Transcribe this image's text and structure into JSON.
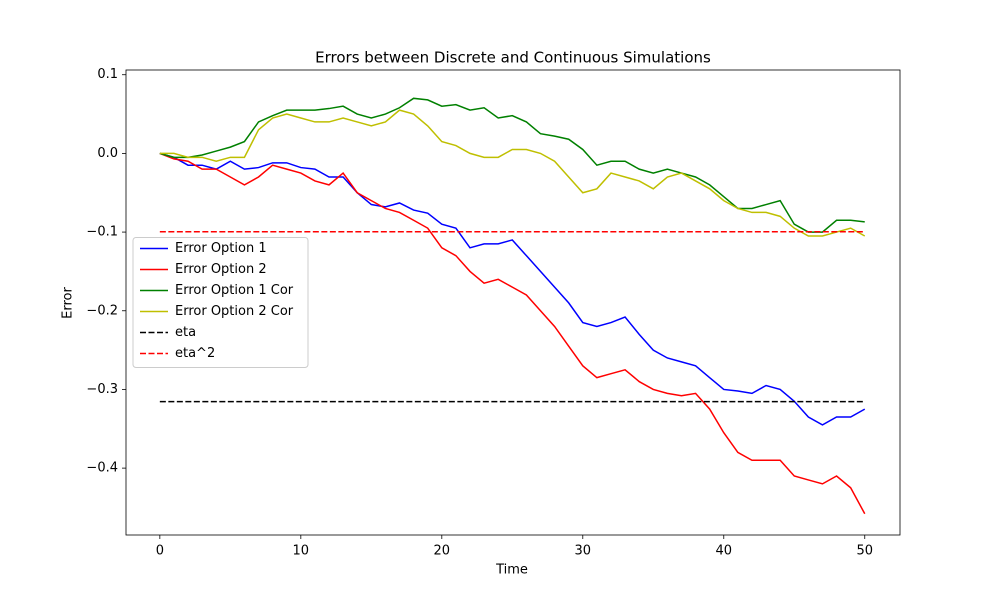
{
  "chart_data": {
    "type": "line",
    "title": "Errors between Discrete and Continuous Simulations",
    "xlabel": "Time",
    "ylabel": "Error",
    "x": [
      0,
      1,
      2,
      3,
      4,
      5,
      6,
      7,
      8,
      9,
      10,
      11,
      12,
      13,
      14,
      15,
      16,
      17,
      18,
      19,
      20,
      21,
      22,
      23,
      24,
      25,
      26,
      27,
      28,
      29,
      30,
      31,
      32,
      33,
      34,
      35,
      36,
      37,
      38,
      39,
      40,
      41,
      42,
      43,
      44,
      45,
      46,
      47,
      48,
      49,
      50
    ],
    "xlim": [
      -2.4,
      52.5
    ],
    "xticks": [
      0,
      10,
      20,
      30,
      40,
      50
    ],
    "ylim": [
      -0.485,
      0.106
    ],
    "yticks": [
      0.1,
      {
        "value": 0,
        "label": "0.0"
      },
      {
        "value": -0.1,
        "label": "−0.1"
      },
      {
        "value": -0.2,
        "label": "−0.2"
      },
      {
        "value": -0.3,
        "label": "−0.3"
      },
      {
        "value": -0.4,
        "label": "−0.4"
      }
    ],
    "legend": "center left",
    "series": [
      {
        "name": "Error Option 1",
        "color": "#0000ff",
        "dashed": false,
        "values": [
          0,
          -0.005,
          -0.015,
          -0.015,
          -0.02,
          -0.01,
          -0.02,
          -0.018,
          -0.012,
          -0.012,
          -0.018,
          -0.02,
          -0.03,
          -0.03,
          -0.05,
          -0.065,
          -0.068,
          -0.063,
          -0.072,
          -0.076,
          -0.09,
          -0.095,
          -0.12,
          -0.115,
          -0.115,
          -0.11,
          -0.13,
          -0.15,
          -0.17,
          -0.19,
          -0.215,
          -0.22,
          -0.215,
          -0.208,
          -0.23,
          -0.25,
          -0.26,
          -0.265,
          -0.27,
          -0.285,
          -0.3,
          -0.302,
          -0.305,
          -0.295,
          -0.3,
          -0.315,
          -0.335,
          -0.345,
          -0.335,
          -0.335,
          -0.325
        ]
      },
      {
        "name": "Error Option 2",
        "color": "#ff0000",
        "dashed": false,
        "values": [
          0,
          -0.007,
          -0.01,
          -0.02,
          -0.02,
          -0.03,
          -0.04,
          -0.03,
          -0.015,
          -0.02,
          -0.025,
          -0.035,
          -0.04,
          -0.025,
          -0.05,
          -0.06,
          -0.07,
          -0.075,
          -0.085,
          -0.095,
          -0.12,
          -0.13,
          -0.15,
          -0.165,
          -0.16,
          -0.17,
          -0.18,
          -0.2,
          -0.22,
          -0.245,
          -0.27,
          -0.285,
          -0.28,
          -0.275,
          -0.29,
          -0.3,
          -0.305,
          -0.308,
          -0.305,
          -0.325,
          -0.355,
          -0.38,
          -0.39,
          -0.39,
          -0.39,
          -0.41,
          -0.415,
          -0.42,
          -0.41,
          -0.425,
          -0.458
        ]
      },
      {
        "name": "Error Option 1 Cor",
        "color": "#008000",
        "dashed": false,
        "values": [
          0,
          -0.005,
          -0.005,
          -0.002,
          0.003,
          0.008,
          0.015,
          0.04,
          0.048,
          0.055,
          0.055,
          0.055,
          0.057,
          0.06,
          0.05,
          0.045,
          0.05,
          0.058,
          0.07,
          0.068,
          0.06,
          0.062,
          0.055,
          0.058,
          0.045,
          0.048,
          0.04,
          0.025,
          0.022,
          0.018,
          0.005,
          -0.015,
          -0.01,
          -0.01,
          -0.02,
          -0.025,
          -0.02,
          -0.025,
          -0.03,
          -0.04,
          -0.055,
          -0.07,
          -0.07,
          -0.065,
          -0.06,
          -0.09,
          -0.1,
          -0.1,
          -0.085,
          -0.085,
          -0.087
        ]
      },
      {
        "name": "Error Option 2 Cor",
        "color": "#bfbf00",
        "dashed": false,
        "values": [
          0,
          0,
          -0.005,
          -0.005,
          -0.01,
          -0.005,
          -0.005,
          0.03,
          0.045,
          0.05,
          0.045,
          0.04,
          0.04,
          0.045,
          0.04,
          0.035,
          0.04,
          0.055,
          0.05,
          0.035,
          0.015,
          0.01,
          0,
          -0.005,
          -0.005,
          0.005,
          0.005,
          0,
          -0.01,
          -0.03,
          -0.05,
          -0.045,
          -0.025,
          -0.03,
          -0.035,
          -0.045,
          -0.03,
          -0.025,
          -0.035,
          -0.045,
          -0.06,
          -0.07,
          -0.075,
          -0.075,
          -0.08,
          -0.095,
          -0.105,
          -0.105,
          -0.1,
          -0.095,
          -0.105
        ]
      },
      {
        "name": "eta",
        "color": "#000000",
        "dashed": true,
        "x": [
          0,
          50
        ],
        "values": [
          -0.3155,
          -0.3155
        ]
      },
      {
        "name": "eta^2",
        "color": "#ff0000",
        "dashed": true,
        "x": [
          0,
          50
        ],
        "values": [
          -0.0995,
          -0.0995
        ]
      }
    ]
  }
}
